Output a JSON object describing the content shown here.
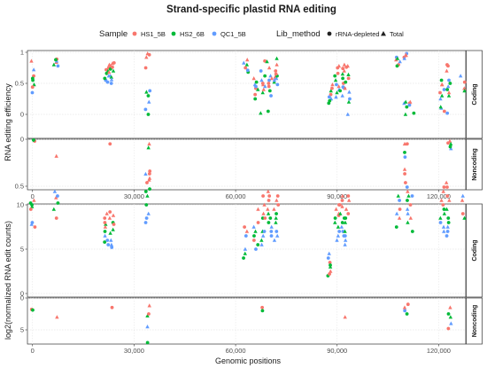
{
  "chart_data": {
    "type": "scatter",
    "title": "Strand-specific plastid RNA editing",
    "xlabel": "Genomic positions",
    "x_ticks": [
      0,
      30000,
      60000,
      90000,
      120000
    ],
    "x_tick_labels": [
      "0",
      "30,000",
      "60,000",
      "90,000",
      "120,000"
    ],
    "xlim": [
      -1500,
      128000
    ],
    "legend": {
      "position": "top",
      "sample_title": "Sample",
      "samples": [
        {
          "name": "HS1_5B",
          "color": "#F8766D"
        },
        {
          "name": "HS2_6B",
          "color": "#00BA38"
        },
        {
          "name": "QC1_5B",
          "color": "#619CFF"
        }
      ],
      "method_title": "Lib_method",
      "methods": [
        {
          "name": "rRNA-depleted",
          "shape": "circle"
        },
        {
          "name": "Total",
          "shape": "triangle"
        }
      ]
    },
    "strip_labels": [
      "Coding",
      "Noncoding"
    ],
    "panels": [
      {
        "id": "efficiency",
        "ylabel": "RNA editing efficiency",
        "facets": [
          {
            "strip": "Coding",
            "ylim": [
              0,
              1
            ],
            "y_ticks": [
              0,
              0.5,
              1
            ],
            "y_tick_labels": [
              "0",
              "0.5",
              "1"
            ],
            "reversed": false
          },
          {
            "strip": "Noncoding",
            "ylim": [
              0,
              0.55
            ],
            "y_ticks": [
              0,
              0.5
            ],
            "y_tick_labels": [
              "0",
              "0.5"
            ],
            "reversed": true
          }
        ],
        "sites": [
          {
            "strand": "Coding",
            "x": 0,
            "values": [
              0.62,
              0.55,
              0.35,
              0.86,
              0.48,
              0.72,
              0.44,
              0.58
            ]
          },
          {
            "strand": "Coding",
            "x": 7000,
            "values": [
              0.84,
              0.8,
              0.86,
              0.89,
              0.88,
              0.78
            ]
          },
          {
            "strand": "Coding",
            "x": 22000,
            "values": [
              0.72,
              0.66,
              0.55,
              0.8,
              0.7,
              0.62,
              0.75,
              0.58,
              0.52,
              0.68
            ]
          },
          {
            "strand": "Coding",
            "x": 23500,
            "values": [
              0.78,
              0.7,
              0.62,
              0.83,
              0.73,
              0.5,
              0.82,
              0.6,
              0.56,
              0.76
            ]
          },
          {
            "strand": "Coding",
            "x": 34000,
            "values": [
              0.75,
              0.0,
              0.38,
              0.92,
              0.36,
              0.2,
              0.96,
              0.3,
              0.08,
              0.98
            ]
          },
          {
            "strand": "Coding",
            "x": 63000,
            "values": [
              0.88,
              0.8,
              0.83,
              0.75,
              0.68,
              0.71
            ]
          },
          {
            "strand": "Coding",
            "x": 66000,
            "values": [
              0.42,
              0.25,
              0.45,
              0.58,
              0.4,
              0.48,
              0.32,
              0.52
            ]
          },
          {
            "strand": "Coding",
            "x": 68000,
            "values": [
              0.48,
              0.35,
              0.55,
              0.86,
              0.62,
              0.7,
              0.4,
              0.02,
              0.45,
              0.5
            ]
          },
          {
            "strand": "Coding",
            "x": 70000,
            "values": [
              0.45,
              0.38,
              0.55,
              0.75,
              0.85,
              0.62,
              0.5,
              0.05,
              0.3,
              0.58
            ]
          },
          {
            "strand": "Coding",
            "x": 72000,
            "values": [
              0.6,
              0.52,
              0.58,
              0.7,
              0.62,
              0.48,
              0.8,
              0.9,
              0.55,
              0.65
            ]
          },
          {
            "strand": "Coding",
            "x": 88000,
            "values": [
              0.32,
              0.18,
              0.28,
              0.48,
              0.38,
              0.25,
              0.42,
              0.22
            ]
          },
          {
            "strand": "Coding",
            "x": 90000,
            "values": [
              0.45,
              0.35,
              0.28,
              0.75,
              0.62,
              0.48,
              0.78,
              0.55,
              0.4,
              0.66
            ]
          },
          {
            "strand": "Coding",
            "x": 91500,
            "values": [
              0.5,
              0.38,
              0.44,
              0.8,
              0.65,
              0.3,
              0.74,
              0.58,
              0.42,
              0.7
            ]
          },
          {
            "strand": "Coding",
            "x": 93000,
            "values": [
              0.42,
              0.2,
              0.36,
              0.76,
              0.52,
              0.25,
              0.78,
              0.64,
              0.0,
              0.58
            ]
          },
          {
            "strand": "Coding",
            "x": 108000,
            "values": [
              0.8,
              0.78,
              0.92,
              0.88,
              0.9,
              0.85
            ]
          },
          {
            "strand": "Coding",
            "x": 110500,
            "values": [
              0.95,
              0.0,
              0.18,
              0.92,
              0.12,
              0.98,
              0.96,
              0.2,
              0.9
            ]
          },
          {
            "strand": "Coding",
            "x": 112000,
            "values": [
              0.18,
              0.02,
              0.15,
              0.2
            ]
          },
          {
            "strand": "Coding",
            "x": 121000,
            "values": [
              0.48,
              0.3,
              0.1,
              0.35,
              0.55,
              0.4,
              0.48,
              0.12,
              0.25,
              0.05
            ]
          },
          {
            "strand": "Coding",
            "x": 123000,
            "values": [
              0.78,
              0.4,
              0.55,
              0.7,
              0.3,
              0.45,
              0.8,
              0.5,
              0.02,
              0.35
            ]
          },
          {
            "strand": "Coding",
            "x": 127000,
            "values": [
              0.42,
              0.38,
              0.62,
              0.52
            ]
          },
          {
            "strand": "Noncoding",
            "x": 0,
            "values": [
              0.02,
              0.01
            ]
          },
          {
            "strand": "Noncoding",
            "x": 7000,
            "values": [
              0.18
            ]
          },
          {
            "strand": "Noncoding",
            "x": 23000,
            "values": [
              0.05
            ]
          },
          {
            "strand": "Noncoding",
            "x": 34000,
            "values": [
              0.05,
              0.09,
              0.37,
              0.34,
              0.53
            ]
          },
          {
            "strand": "Noncoding",
            "x": 110500,
            "values": [
              0.05,
              0.14,
              0.19,
              0.05
            ]
          },
          {
            "strand": "Noncoding",
            "x": 123000,
            "values": [
              0.02,
              0.05,
              0.1,
              0.04,
              0.08
            ]
          }
        ]
      },
      {
        "id": "counts",
        "ylabel": "log2(normalized RNA edit counts)",
        "facets": [
          {
            "strip": "Coding",
            "ylim": [
              0,
              14.5
            ],
            "y_ticks": [
              0,
              5,
              10
            ],
            "y_tick_labels": [
              "0",
              "5",
              "10"
            ],
            "reversed": false
          },
          {
            "strip": "Noncoding",
            "ylim": [
              0,
              7.5
            ],
            "y_ticks": [
              0,
              5
            ],
            "y_tick_labels": [
              "0",
              "5"
            ],
            "reversed": true
          }
        ],
        "sites": [
          {
            "strand": "Coding",
            "x": 0,
            "values": [
              7.5,
              10.2,
              8.0,
              10.5,
              9.8,
              7.8,
              9.5,
              10.0
            ]
          },
          {
            "strand": "Coding",
            "x": 7000,
            "values": [
              10.8,
              9.5,
              11.5,
              8.5,
              10.2,
              11.0
            ]
          },
          {
            "strand": "Coding",
            "x": 22000,
            "values": [
              8.5,
              7.0,
              5.5,
              9.0,
              7.8,
              6.5,
              8.0,
              5.8,
              6.0,
              7.5
            ]
          },
          {
            "strand": "Coding",
            "x": 23500,
            "values": [
              8.8,
              7.2,
              6.0,
              9.2,
              8.0,
              5.2,
              8.5,
              6.8,
              5.5,
              7.8
            ]
          },
          {
            "strand": "Coding",
            "x": 34000,
            "values": [
              12.5,
              10.0,
              8.0,
              13.0,
              11.0,
              9.0,
              13.5,
              11.5,
              8.5,
              12.8
            ]
          },
          {
            "strand": "Coding",
            "x": 63000,
            "values": [
              7.0,
              4.5,
              5.0,
              7.5,
              4.0,
              6.5
            ]
          },
          {
            "strand": "Coding",
            "x": 66000,
            "values": [
              8.0,
              6.5,
              5.0,
              9.5,
              7.0,
              7.5,
              6.0,
              5.5
            ]
          },
          {
            "strand": "Coding",
            "x": 68000,
            "values": [
              9.0,
              7.0,
              5.5,
              11.0,
              8.5,
              7.0,
              10.0,
              6.0,
              6.5,
              8.5
            ]
          },
          {
            "strand": "Coding",
            "x": 70000,
            "values": [
              10.5,
              8.0,
              6.5,
              11.5,
              9.0,
              7.5,
              11.0,
              8.5,
              7.0,
              9.5
            ]
          },
          {
            "strand": "Coding",
            "x": 72000,
            "values": [
              9.5,
              8.0,
              6.0,
              11.0,
              9.0,
              7.0,
              10.5,
              8.5,
              6.5,
              10.0
            ]
          },
          {
            "strand": "Coding",
            "x": 88000,
            "values": [
              3.5,
              2.0,
              4.0,
              2.5,
              3.0,
              4.5,
              2.2,
              3.2
            ]
          },
          {
            "strand": "Coding",
            "x": 90000,
            "values": [
              9.0,
              7.5,
              6.0,
              10.0,
              8.5,
              7.0,
              9.5,
              8.0,
              6.5,
              8.8
            ]
          },
          {
            "strand": "Coding",
            "x": 91500,
            "values": [
              10.0,
              8.0,
              6.5,
              11.0,
              9.0,
              7.5,
              10.5,
              8.5,
              7.0,
              9.8
            ]
          },
          {
            "strand": "Coding",
            "x": 93000,
            "values": [
              9.5,
              7.0,
              5.5,
              11.0,
              8.5,
              6.5,
              10.5,
              8.0,
              6.0,
              9.0
            ]
          },
          {
            "strand": "Coding",
            "x": 108000,
            "values": [
              9.5,
              7.5,
              10.5,
              8.5,
              11.0,
              9.0
            ]
          },
          {
            "strand": "Coding",
            "x": 110500,
            "values": [
              11.5,
              8.0,
              9.5,
              13.5,
              10.5,
              12.0,
              14.0,
              11.0,
              9.0,
              12.5
            ]
          },
          {
            "strand": "Coding",
            "x": 112000,
            "values": [
              10.0,
              7.0,
              11.0,
              8.5
            ]
          },
          {
            "strand": "Coding",
            "x": 121000,
            "values": [
              10.5,
              8.5,
              7.0,
              12.0,
              9.5,
              8.0,
              11.5,
              9.0,
              7.5,
              10.0
            ]
          },
          {
            "strand": "Coding",
            "x": 123000,
            "values": [
              11.0,
              8.0,
              6.5,
              12.5,
              9.5,
              7.5,
              12.0,
              8.5,
              7.0,
              10.5
            ]
          },
          {
            "strand": "Coding",
            "x": 127000,
            "values": [
              10.5,
              8.5,
              11.0,
              9.0
            ]
          },
          {
            "strand": "Noncoding",
            "x": 0,
            "values": [
              1.8,
              1.9
            ]
          },
          {
            "strand": "Noncoding",
            "x": 7000,
            "values": [
              3.0
            ]
          },
          {
            "strand": "Noncoding",
            "x": 23000,
            "values": [
              1.5
            ]
          },
          {
            "strand": "Noncoding",
            "x": 34000,
            "values": [
              1.2,
              2.8,
              4.5,
              2.5,
              7.0
            ]
          },
          {
            "strand": "Noncoding",
            "x": 68000,
            "values": [
              1.5,
              2.0
            ]
          },
          {
            "strand": "Noncoding",
            "x": 93000,
            "values": [
              3.0
            ]
          },
          {
            "strand": "Noncoding",
            "x": 110500,
            "values": [
              1.0,
              2.5,
              2.0,
              1.5
            ]
          },
          {
            "strand": "Noncoding",
            "x": 123000,
            "values": [
              1.5,
              3.0,
              4.0,
              4.8,
              2.5
            ]
          }
        ]
      }
    ]
  }
}
